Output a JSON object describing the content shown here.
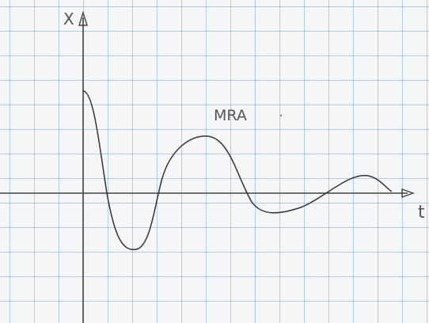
{
  "labels": {
    "vertical_axis": "X",
    "horizontal_axis": "t",
    "curve": "MRA"
  }
}
